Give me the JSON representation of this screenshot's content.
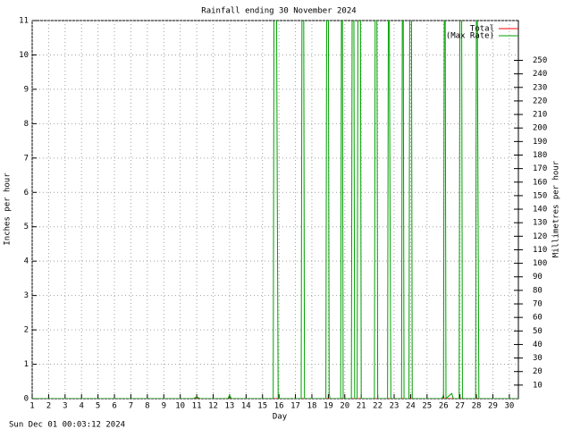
{
  "chart_data": {
    "type": "line",
    "title": "Rainfall ending 30 November 2024",
    "xlabel": "Day",
    "ylabel": "Inches per hour",
    "y2label": "Millimetres per hour",
    "footer": "Sun Dec 01 00:03:12 2024",
    "xlim": [
      1,
      30.55
    ],
    "xticks": [
      1,
      2,
      3,
      4,
      5,
      6,
      7,
      8,
      9,
      10,
      11,
      12,
      13,
      14,
      15,
      16,
      17,
      18,
      19,
      20,
      21,
      22,
      23,
      24,
      25,
      26,
      27,
      28,
      29,
      30
    ],
    "ylim": [
      0,
      11
    ],
    "yticks": [
      0,
      1,
      2,
      3,
      4,
      5,
      6,
      7,
      8,
      9,
      10,
      11
    ],
    "y2lim": [
      0,
      279.4
    ],
    "y2ticks": [
      10,
      20,
      30,
      40,
      50,
      60,
      70,
      80,
      90,
      100,
      110,
      120,
      130,
      140,
      150,
      160,
      170,
      180,
      190,
      200,
      210,
      220,
      230,
      240,
      250
    ],
    "grid": true,
    "legend": "top-right",
    "series": [
      {
        "name": "Total",
        "color": "#ff0000",
        "x": [
          1,
          30.55
        ],
        "values": [
          0,
          0
        ]
      },
      {
        "name": "(Max Rate)",
        "color": "#00a000",
        "x": [
          1,
          10.8,
          11,
          11.2,
          12.9,
          13,
          13.1,
          15.65,
          15.7,
          15.85,
          15.9,
          15.95,
          17.35,
          17.4,
          17.5,
          17.55,
          18.85,
          18.9,
          19.0,
          19.05,
          19.1,
          19.75,
          19.8,
          19.85,
          19.9,
          20.4,
          20.45,
          20.55,
          20.6,
          20.75,
          20.8,
          20.95,
          21.0,
          21.8,
          21.85,
          21.95,
          22.0,
          22.6,
          22.65,
          22.7,
          22.75,
          22.8,
          23.45,
          23.5,
          23.55,
          23.6,
          23.9,
          23.95,
          24.05,
          24.1,
          25.9,
          26.0,
          26.05,
          26.1,
          26.15,
          26.5,
          26.6,
          26.95,
          27.0,
          27.1,
          27.15,
          27.95,
          28.0,
          28.05,
          28.1,
          28.15,
          30.55
        ],
        "values": [
          0,
          0,
          0.05,
          0,
          0,
          0.1,
          0,
          0,
          12,
          12,
          5.5,
          0,
          0,
          12,
          12,
          0,
          0,
          12,
          12,
          0.15,
          0,
          0,
          12,
          12,
          0,
          0,
          12,
          12,
          0,
          0,
          12,
          12,
          0,
          0,
          12,
          12,
          0,
          0,
          12,
          12,
          5.5,
          0,
          0,
          12,
          12,
          0,
          0,
          12,
          12,
          0,
          0,
          0.1,
          12,
          12,
          0,
          0.15,
          0,
          0,
          12,
          12,
          0,
          0,
          12,
          12,
          5.5,
          0,
          0
        ]
      }
    ]
  }
}
